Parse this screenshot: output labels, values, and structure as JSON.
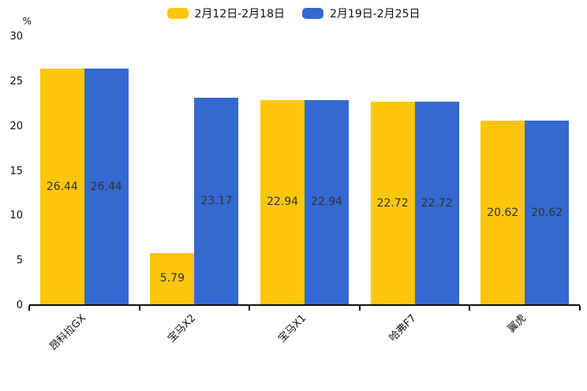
{
  "chart_data": {
    "type": "bar",
    "title": "",
    "ylabel": "%",
    "xlabel": "",
    "ylim": [
      0,
      30
    ],
    "yticks": [
      0,
      5,
      10,
      15,
      20,
      25,
      30
    ],
    "grid": false,
    "legend_position": "top-center",
    "value_labels_inside_bars": true,
    "categories": [
      "昂科拉GX",
      "宝马X2",
      "宝马X1",
      "哈弗F7",
      "翼虎"
    ],
    "series": [
      {
        "name": "2月12日-2月18日",
        "color": "#FCC60B",
        "values": [
          26.44,
          5.79,
          22.94,
          22.72,
          20.62
        ]
      },
      {
        "name": "2月19日-2月25日",
        "color": "#3568D0",
        "values": [
          26.44,
          23.17,
          22.94,
          22.72,
          20.62
        ]
      }
    ],
    "colors": {
      "axis": "#111111",
      "value_label_text": "#333333",
      "background": "#ffffff"
    }
  }
}
